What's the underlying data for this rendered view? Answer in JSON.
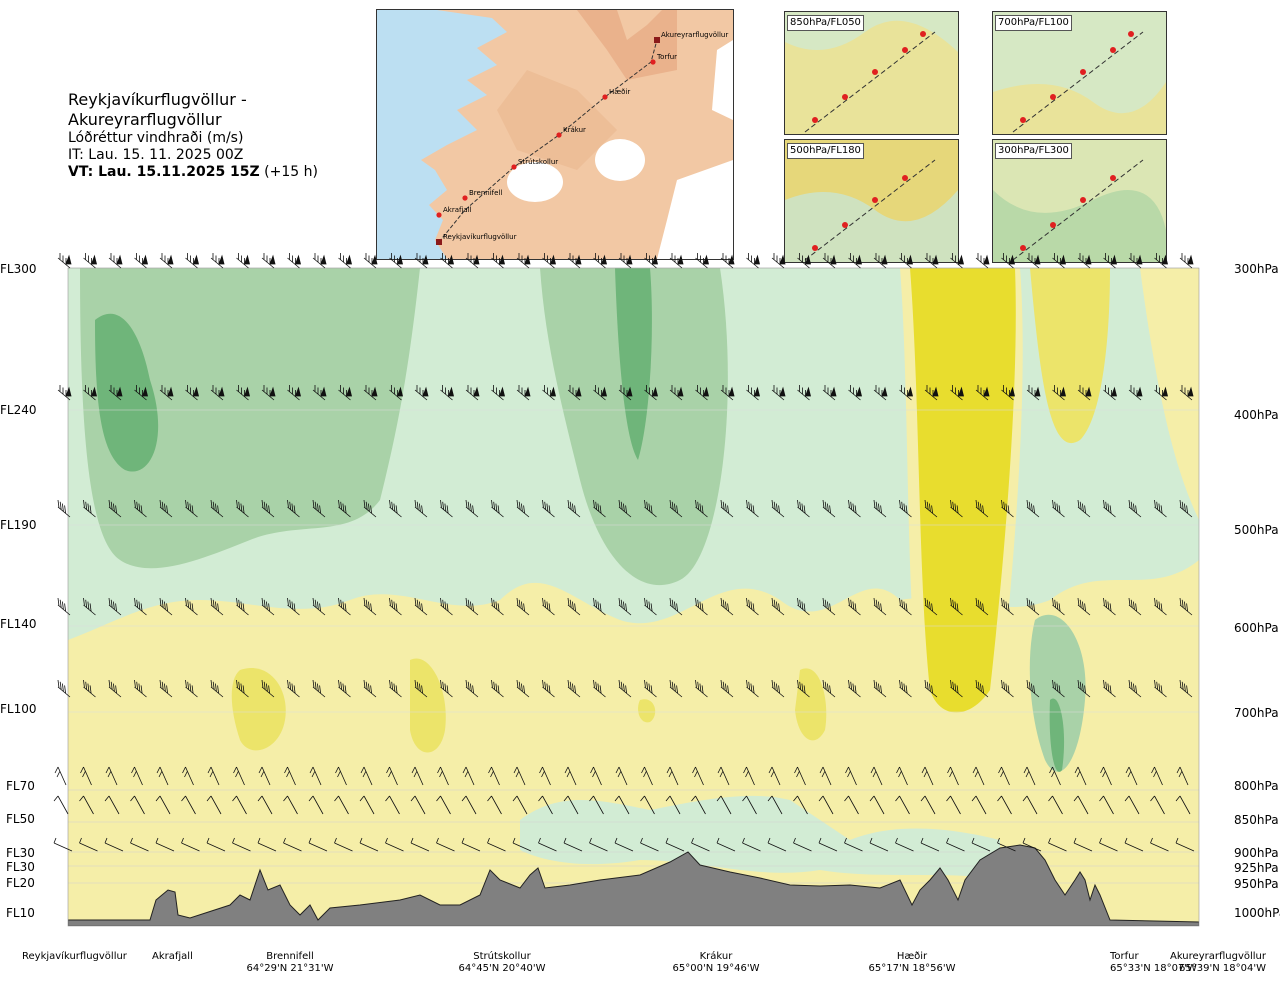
{
  "header": {
    "route": "Reykjavíkurflugvöllur - Akureyrarflugvöllur",
    "product": "Lóðréttur vindhraði (m/s)",
    "it": "IT: Lau. 15. 11. 2025 00Z",
    "vt": "VT: Lau. 15.11.2025 15Z",
    "vt_offset": "(+15 h)"
  },
  "route_map": {
    "points": [
      {
        "name": "Akureyrarflugvöllur",
        "kind": "airport"
      },
      {
        "name": "Torfur",
        "kind": "waypoint"
      },
      {
        "name": "Hæðir",
        "kind": "waypoint"
      },
      {
        "name": "Krákur",
        "kind": "waypoint"
      },
      {
        "name": "Strútskollur",
        "kind": "waypoint"
      },
      {
        "name": "Brennifell",
        "kind": "waypoint"
      },
      {
        "name": "Akrafjall",
        "kind": "waypoint"
      },
      {
        "name": "Reykjavíkurflugvöllur",
        "kind": "airport"
      }
    ],
    "colors": {
      "sea": "#bcdff2",
      "land": "#f2c8a4",
      "ice": "#ffffff",
      "route": "#e02020"
    }
  },
  "insets": [
    {
      "label": "850hPa/FL050",
      "field_color": "#e9e39a"
    },
    {
      "label": "700hPa/FL100",
      "field_color": "#d6e8c4"
    },
    {
      "label": "500hPa/FL180",
      "field_color": "#e6d77a"
    },
    {
      "label": "300hPa/FL300",
      "field_color": "#dbe6b4"
    }
  ],
  "axes": {
    "left_ticks": [
      "FL300",
      "FL240",
      "FL190",
      "FL140",
      "FL100",
      "FL70",
      "FL50",
      "FL30",
      "FL30",
      "FL20",
      "FL10"
    ],
    "right_ticks": [
      "300hPa",
      "400hPa",
      "500hPa",
      "600hPa",
      "700hPa",
      "800hPa",
      "850hPa",
      "900hPa",
      "925hPa",
      "950hPa",
      "1000hPa"
    ]
  },
  "x_labels": [
    {
      "name": "Reykjavíkurflugvöllur",
      "coord": ""
    },
    {
      "name": "Akrafjall",
      "coord": ""
    },
    {
      "name": "Brennifell",
      "coord": "64°29'N 21°31'W"
    },
    {
      "name": "Strútskollur",
      "coord": "64°45'N 20°40'W"
    },
    {
      "name": "Krákur",
      "coord": "65°00'N 19°46'W"
    },
    {
      "name": "Hæðir",
      "coord": "65°17'N 18°56'W"
    },
    {
      "name": "Torfur",
      "coord": "65°33'N 18°07'W"
    },
    {
      "name": "Akureyrarflugvöllur",
      "coord": "65°39'N 18°04'W"
    }
  ],
  "chart_data": {
    "type": "heatmap",
    "title": "Lóðréttur vindhraði (m/s)",
    "x": [
      "Reykjavíkurflugvöllur",
      "Akrafjall",
      "Brennifell",
      "Strútskollur",
      "Krákur",
      "Hæðir",
      "Torfur",
      "Akureyrarflugvöllur"
    ],
    "pressure_levels_hpa": [
      300,
      400,
      500,
      600,
      700,
      800,
      850,
      900,
      925,
      950,
      1000
    ],
    "colors": {
      "strong_down": "#6fb57a",
      "mod_down": "#a9d2a8",
      "weak_down": "#d2ecd4",
      "neutral": "#fdfbe6",
      "weak_up": "#f5eea8",
      "mod_up": "#ece46a",
      "strong_up": "#e8dd2e",
      "terrain": "#808080"
    },
    "wind_barb_rows_hpa": [
      300,
      400,
      500,
      600,
      700,
      800,
      850,
      900
    ]
  }
}
